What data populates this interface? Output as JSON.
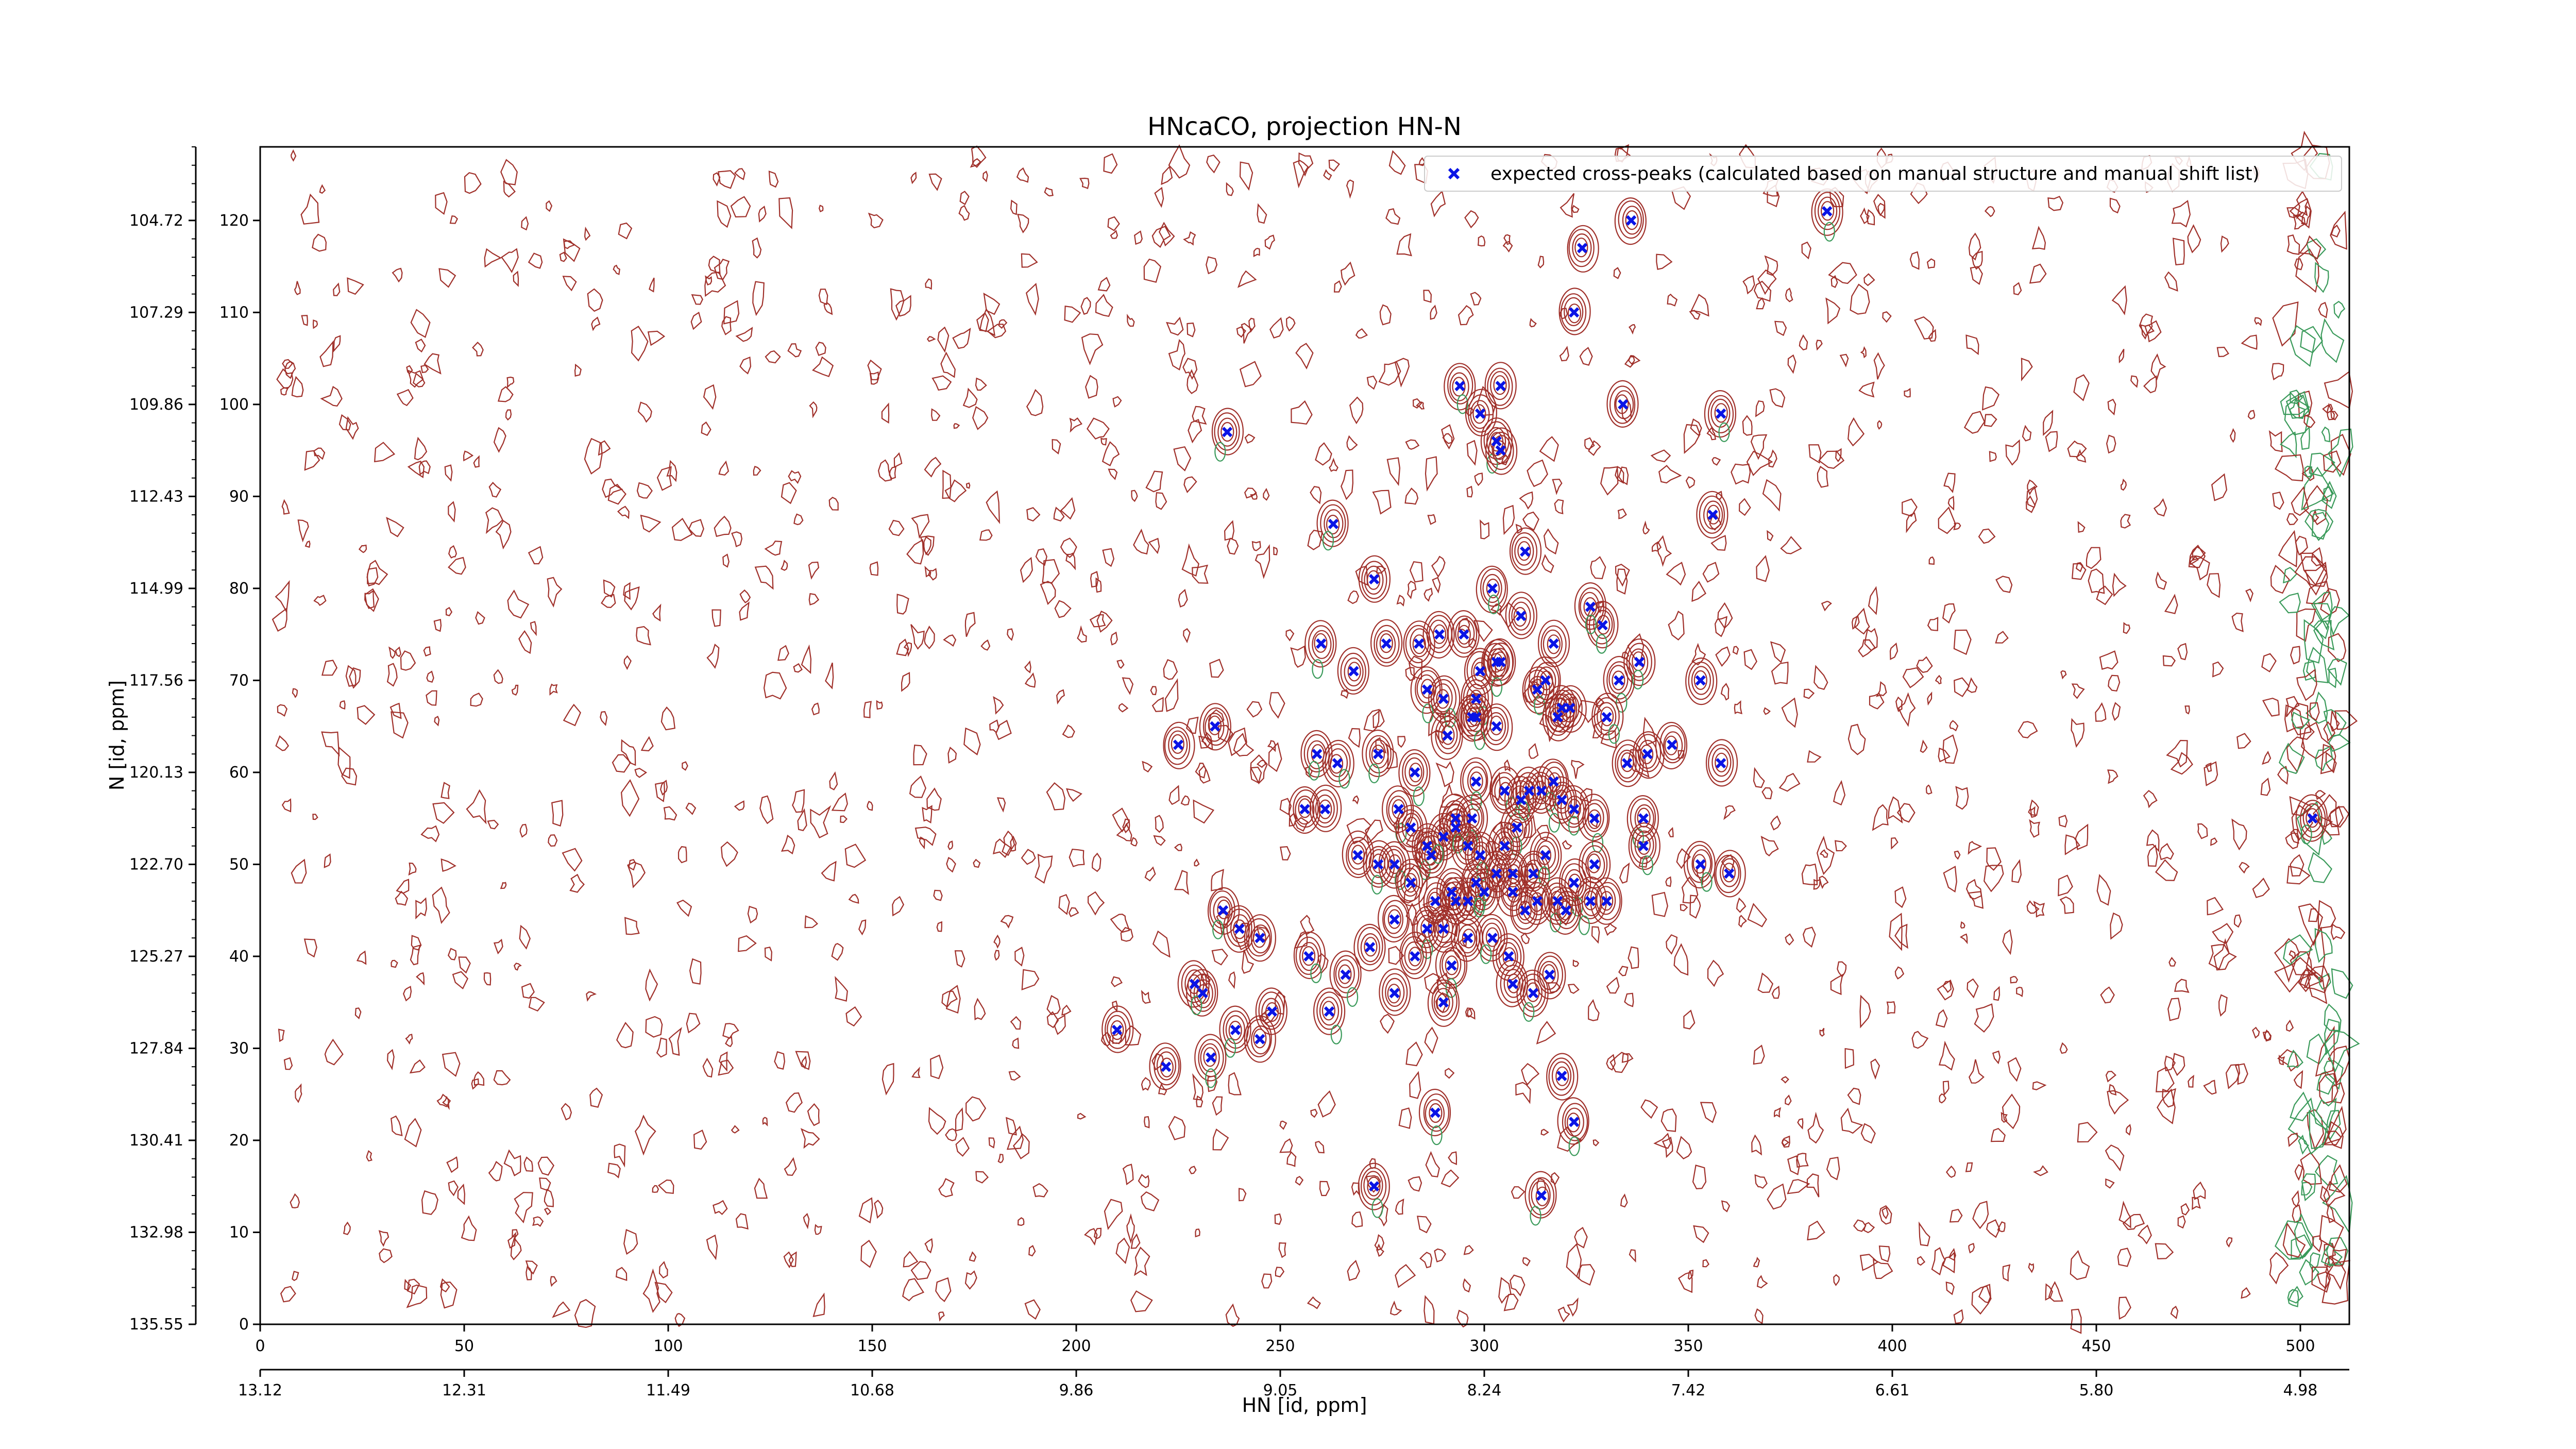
{
  "chart_data": {
    "type": "scatter",
    "title": "HNcaCO, projection HN-N",
    "xlabel": "HN [id, ppm]",
    "ylabel": "N [id, ppm]",
    "xlim": [
      0,
      512
    ],
    "ylim": [
      0,
      128
    ],
    "bottom_axis_ticks": [
      0,
      50,
      100,
      150,
      200,
      250,
      300,
      350,
      400,
      450,
      500
    ],
    "secondary_x_tick_labels": [
      "13.12",
      "12.31",
      "11.49",
      "10.68",
      "9.86",
      "9.05",
      "8.24",
      "7.42",
      "6.61",
      "5.80",
      "4.98"
    ],
    "left_inner_ticks": [
      0,
      10,
      20,
      30,
      40,
      50,
      60,
      70,
      80,
      90,
      100,
      110,
      120
    ],
    "secondary_y_tick_labels": [
      "135.55",
      "132.98",
      "130.41",
      "127.84",
      "125.27",
      "122.70",
      "120.13",
      "117.56",
      "114.99",
      "112.43",
      "109.86",
      "107.29",
      "104.72"
    ],
    "grid": false,
    "legend_position": "top-right",
    "colors": {
      "peak_marker": "#0a14e6",
      "positive_contour": "#a0302a",
      "negative_contour": "#3a9a5a"
    },
    "series": [
      {
        "name": "expected cross-peaks (calculated based on manual structure and manual shift list)",
        "marker": "x",
        "points": [
          [
            384,
            121
          ],
          [
            336,
            120
          ],
          [
            324,
            117
          ],
          [
            322,
            110
          ],
          [
            294,
            102
          ],
          [
            304,
            102
          ],
          [
            299,
            99
          ],
          [
            334,
            100
          ],
          [
            358,
            99
          ],
          [
            237,
            97
          ],
          [
            303,
            96
          ],
          [
            304,
            95
          ],
          [
            263,
            87
          ],
          [
            356,
            88
          ],
          [
            273,
            81
          ],
          [
            310,
            84
          ],
          [
            302,
            80
          ],
          [
            276,
            74
          ],
          [
            284,
            74
          ],
          [
            289,
            75
          ],
          [
            295,
            75
          ],
          [
            299,
            71
          ],
          [
            317,
            74
          ],
          [
            329,
            76
          ],
          [
            326,
            78
          ],
          [
            353,
            70
          ],
          [
            338,
            72
          ],
          [
            333,
            70
          ],
          [
            260,
            74
          ],
          [
            268,
            71
          ],
          [
            286,
            69
          ],
          [
            290,
            68
          ],
          [
            298,
            68
          ],
          [
            304,
            72
          ],
          [
            309,
            77
          ],
          [
            313,
            69
          ],
          [
            315,
            70
          ],
          [
            321,
            67
          ],
          [
            303,
            72
          ],
          [
            319,
            67
          ],
          [
            298,
            66
          ],
          [
            297,
            66
          ],
          [
            303,
            65
          ],
          [
            291,
            64
          ],
          [
            274,
            62
          ],
          [
            259,
            62
          ],
          [
            318,
            66
          ],
          [
            340,
            62
          ],
          [
            330,
            66
          ],
          [
            346,
            63
          ],
          [
            358,
            61
          ],
          [
            225,
            63
          ],
          [
            234,
            65
          ],
          [
            264,
            61
          ],
          [
            283,
            60
          ],
          [
            298,
            59
          ],
          [
            305,
            58
          ],
          [
            309,
            57
          ],
          [
            311,
            58
          ],
          [
            314,
            58
          ],
          [
            317,
            59
          ],
          [
            319,
            57
          ],
          [
            322,
            56
          ],
          [
            327,
            55
          ],
          [
            335,
            61
          ],
          [
            339,
            55
          ],
          [
            308,
            54
          ],
          [
            297,
            55
          ],
          [
            293,
            55
          ],
          [
            286,
            52
          ],
          [
            279,
            56
          ],
          [
            269,
            51
          ],
          [
            256,
            56
          ],
          [
            261,
            56
          ],
          [
            282,
            54
          ],
          [
            287,
            51
          ],
          [
            290,
            53
          ],
          [
            293,
            54
          ],
          [
            296,
            52
          ],
          [
            299,
            51
          ],
          [
            305,
            52
          ],
          [
            307,
            49
          ],
          [
            312,
            49
          ],
          [
            315,
            51
          ],
          [
            322,
            48
          ],
          [
            327,
            50
          ],
          [
            330,
            46
          ],
          [
            339,
            52
          ],
          [
            353,
            50
          ],
          [
            360,
            49
          ],
          [
            274,
            50
          ],
          [
            278,
            50
          ],
          [
            282,
            48
          ],
          [
            292,
            47
          ],
          [
            293,
            46
          ],
          [
            296,
            46
          ],
          [
            298,
            48
          ],
          [
            300,
            47
          ],
          [
            303,
            49
          ],
          [
            307,
            47
          ],
          [
            310,
            45
          ],
          [
            313,
            46
          ],
          [
            318,
            46
          ],
          [
            320,
            45
          ],
          [
            326,
            46
          ],
          [
            278,
            44
          ],
          [
            286,
            43
          ],
          [
            290,
            43
          ],
          [
            296,
            42
          ],
          [
            302,
            42
          ],
          [
            306,
            40
          ],
          [
            283,
            40
          ],
          [
            272,
            41
          ],
          [
            266,
            38
          ],
          [
            257,
            40
          ],
          [
            240,
            43
          ],
          [
            245,
            42
          ],
          [
            236,
            45
          ],
          [
            288,
            46
          ],
          [
            292,
            39
          ],
          [
            307,
            37
          ],
          [
            312,
            36
          ],
          [
            316,
            38
          ],
          [
            290,
            35
          ],
          [
            278,
            36
          ],
          [
            262,
            34
          ],
          [
            248,
            34
          ],
          [
            239,
            32
          ],
          [
            231,
            36
          ],
          [
            229,
            37
          ],
          [
            245,
            31
          ],
          [
            210,
            32
          ],
          [
            233,
            29
          ],
          [
            222,
            28
          ],
          [
            319,
            27
          ],
          [
            322,
            22
          ],
          [
            288,
            23
          ],
          [
            273,
            15
          ],
          [
            314,
            14
          ],
          [
            503,
            55
          ]
        ]
      }
    ]
  }
}
